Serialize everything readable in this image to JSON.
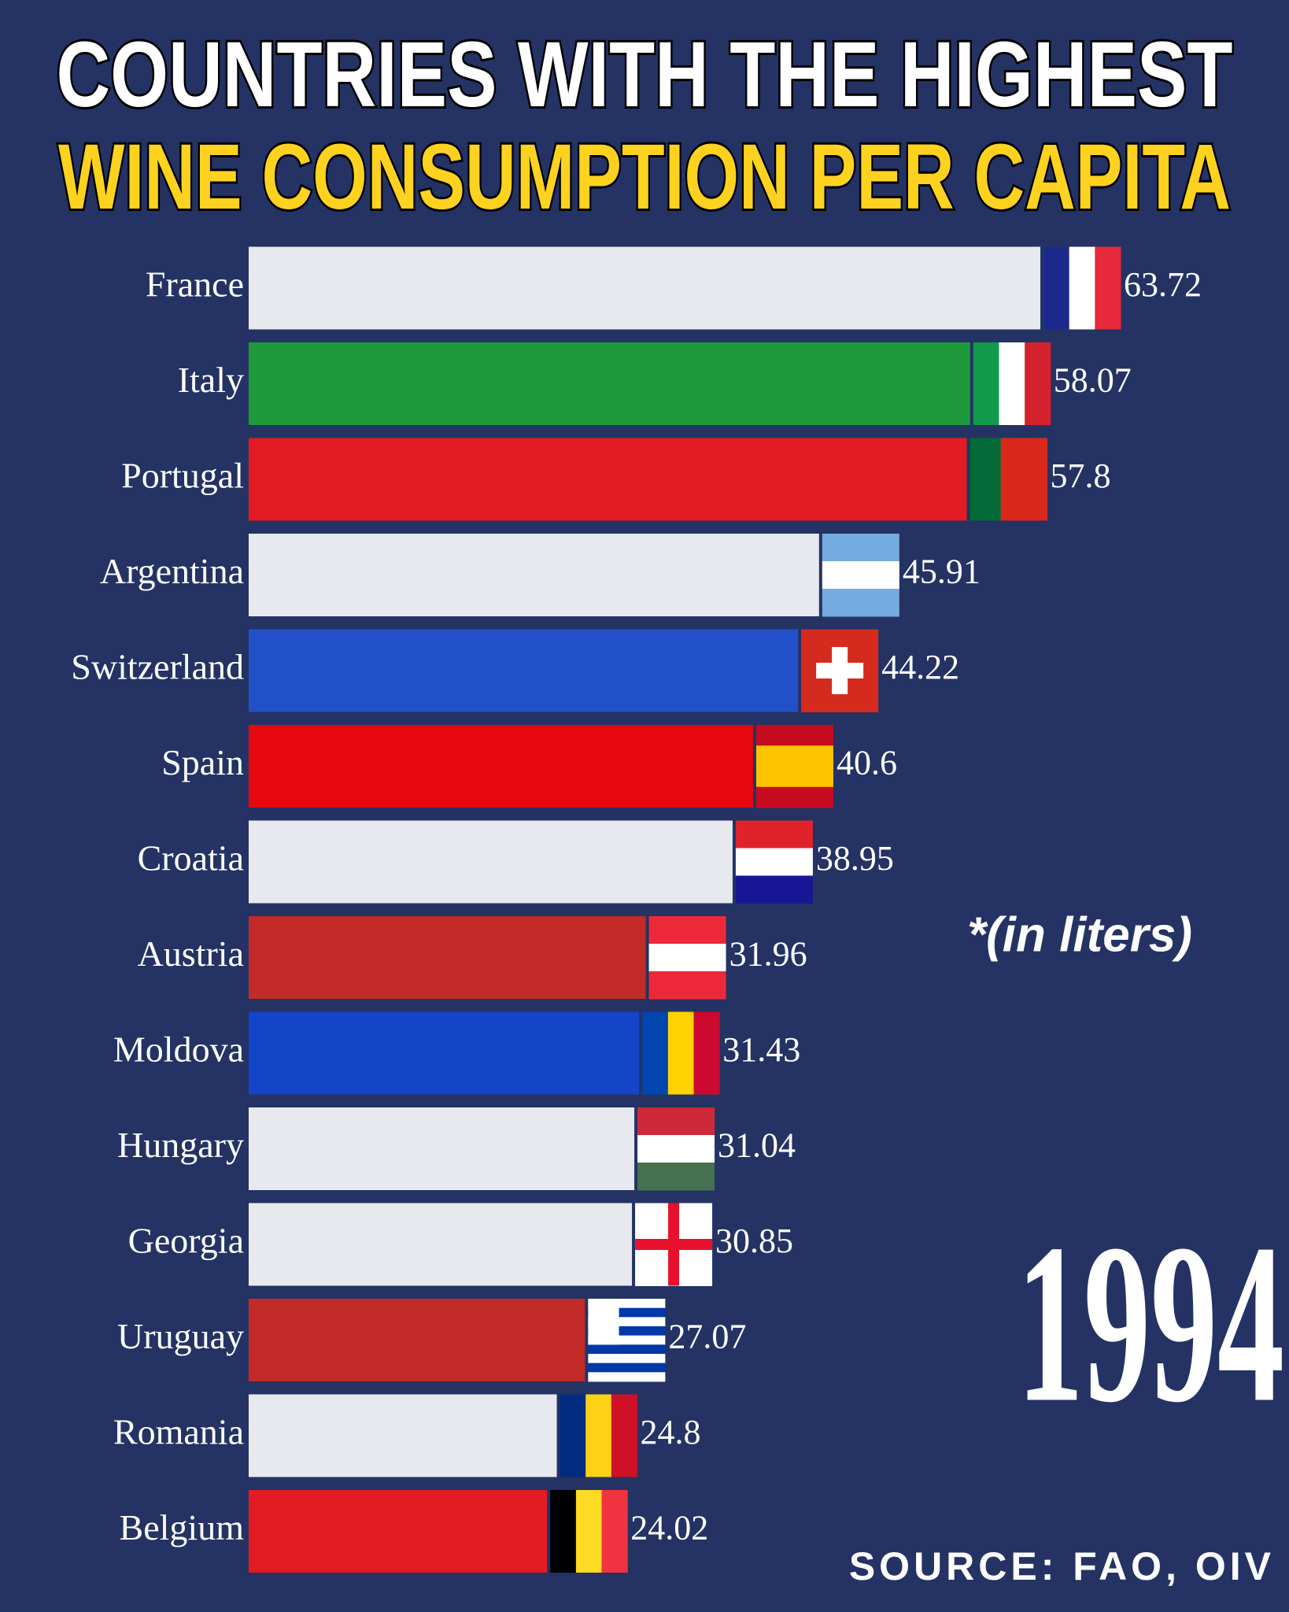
{
  "chart_data": {
    "type": "bar",
    "orientation": "horizontal",
    "title": "COUNTRIES WITH THE HIGHEST",
    "subtitle": "WINE CONSUMPTION PER CAPITA",
    "unit_note": "*(in liters)",
    "year": "1994",
    "source": "SOURCE: FAO, OIV",
    "categories": [
      "France",
      "Italy",
      "Portugal",
      "Argentina",
      "Switzerland",
      "Spain",
      "Croatia",
      "Austria",
      "Moldova",
      "Hungary",
      "Georgia",
      "Uruguay",
      "Romania",
      "Belgium"
    ],
    "values": [
      63.72,
      58.07,
      57.8,
      45.91,
      44.22,
      40.6,
      38.95,
      31.96,
      31.43,
      31.04,
      30.85,
      27.07,
      24.8,
      24.02
    ],
    "colors": [
      "#e8e9ef",
      "#1f9a3a",
      "#e31b23",
      "#e8e9ef",
      "#2250c8",
      "#e5080f",
      "#e8e9ef",
      "#c22b28",
      "#1444c8",
      "#e8e9ef",
      "#e8e9ef",
      "#c22b28",
      "#e8e9ef",
      "#e31b23"
    ]
  }
}
